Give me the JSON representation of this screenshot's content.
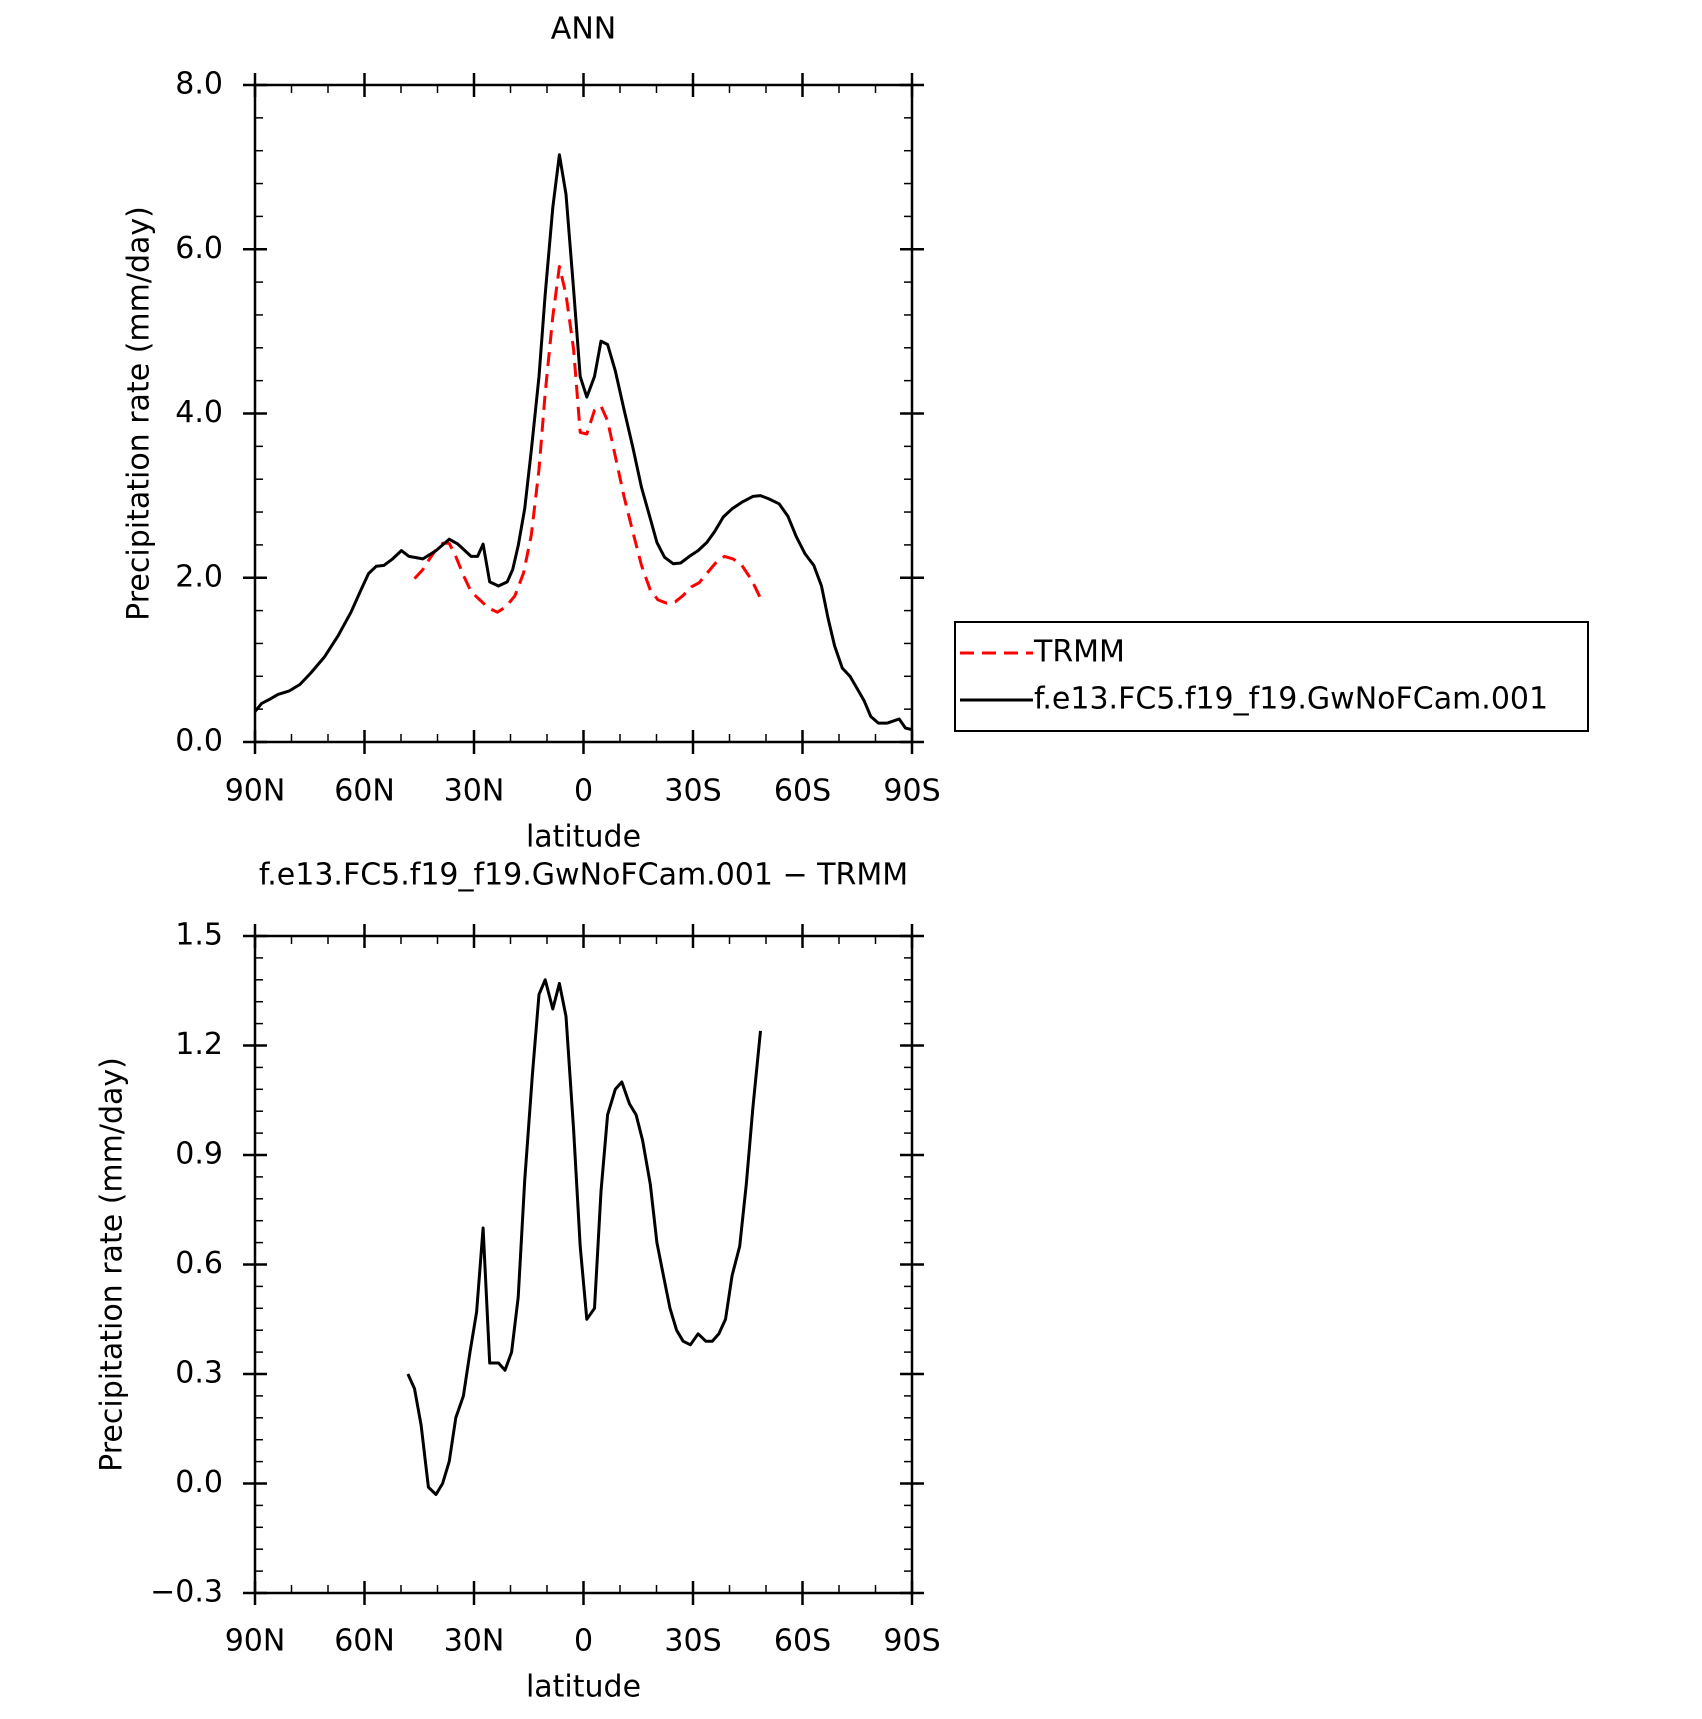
{
  "chart_data": [
    {
      "type": "line",
      "title": "ANN",
      "xlabel": "latitude",
      "ylabel": "Precipitation rate (mm/day)",
      "xlim": [
        90,
        -90
      ],
      "xticks": [
        {
          "value": 90,
          "label": "90N"
        },
        {
          "value": 60,
          "label": "60N"
        },
        {
          "value": 30,
          "label": "30N"
        },
        0,
        {
          "value": -30,
          "label": "30S"
        },
        {
          "value": -60,
          "label": "60S"
        },
        {
          "value": -90,
          "label": "90S"
        }
      ],
      "ylim": [
        0,
        8
      ],
      "yticks": [
        {
          "value": 0,
          "label": "0.0"
        },
        {
          "value": 2,
          "label": "2.0"
        },
        {
          "value": 4,
          "label": "4.0"
        },
        {
          "value": 6,
          "label": "6.0"
        },
        {
          "value": 8,
          "label": "8.0"
        }
      ],
      "legend": "right",
      "series": [
        {
          "name": "TRMM",
          "color": "#ff0000",
          "linestyle": "dashed",
          "x": [
            46.3,
            44,
            42.2,
            40.4,
            38.6,
            36.8,
            35.0,
            32.9,
            30.8,
            28.4,
            26.0,
            23.6,
            21.2,
            18.8,
            16.4,
            14.3,
            12.2,
            10.5,
            8.4,
            6.6,
            4.8,
            2.7,
            0.9,
            -0.9,
            -3.0,
            -4.8,
            -6.6,
            -8.7,
            -11.1,
            -13.5,
            -15.9,
            -18.3,
            -20.4,
            -22.8,
            -25.2,
            -27.2,
            -29.6,
            -31.7,
            -34.1,
            -36.2,
            -38.6,
            -41.0,
            -43.4,
            -46.1,
            -48.5
          ],
          "values": [
            1.99,
            2.1,
            2.23,
            2.34,
            2.42,
            2.42,
            2.26,
            2.03,
            1.83,
            1.73,
            1.63,
            1.58,
            1.65,
            1.78,
            2.06,
            2.52,
            3.32,
            4.25,
            5.18,
            5.79,
            5.45,
            4.78,
            3.77,
            3.75,
            4.04,
            4.09,
            3.91,
            3.48,
            2.99,
            2.56,
            2.15,
            1.85,
            1.73,
            1.69,
            1.71,
            1.78,
            1.89,
            1.94,
            2.07,
            2.18,
            2.26,
            2.23,
            2.15,
            1.97,
            1.75
          ]
        },
        {
          "name": "f.e13.FC5.f19_f19.GwNoFCam.001",
          "color": "#000000",
          "linestyle": "solid",
          "x": [
            90,
            88.2,
            86,
            83.7,
            80.7,
            77.7,
            74.7,
            70.9,
            67.3,
            63.7,
            61.3,
            58.9,
            56.8,
            54.7,
            52.3,
            49.9,
            47.8,
            44,
            40.4,
            36.8,
            34.4,
            30.8,
            29,
            27.5,
            25.7,
            23.3,
            20.9,
            19.4,
            17.9,
            16.1,
            14.3,
            12.2,
            10.5,
            8.4,
            6.6,
            4.8,
            2.7,
            0.9,
            -0.9,
            -3.0,
            -4.8,
            -6.6,
            -8.7,
            -11.1,
            -13.5,
            -15.9,
            -18.3,
            -20.1,
            -22.2,
            -24.6,
            -26.6,
            -29.0,
            -31.4,
            -33.8,
            -35.9,
            -38.3,
            -40.7,
            -43.4,
            -46.4,
            -48.5,
            -50.8,
            -53.6,
            -56.0,
            -58.3,
            -60.7,
            -63.1,
            -65.2,
            -67.0,
            -68.8,
            -70.9,
            -73.0,
            -75.1,
            -76.9,
            -78.7,
            -80.8,
            -83.2,
            -86.5,
            -88.2,
            -90
          ],
          "values": [
            0.37,
            0.47,
            0.52,
            0.58,
            0.62,
            0.7,
            0.84,
            1.04,
            1.29,
            1.58,
            1.82,
            2.05,
            2.14,
            2.15,
            2.23,
            2.33,
            2.26,
            2.23,
            2.33,
            2.47,
            2.41,
            2.26,
            2.26,
            2.41,
            1.95,
            1.9,
            1.95,
            2.1,
            2.39,
            2.84,
            3.55,
            4.45,
            5.45,
            6.51,
            7.15,
            6.67,
            5.51,
            4.45,
            4.2,
            4.45,
            4.88,
            4.84,
            4.52,
            4.05,
            3.59,
            3.1,
            2.72,
            2.43,
            2.25,
            2.17,
            2.18,
            2.26,
            2.33,
            2.43,
            2.56,
            2.74,
            2.84,
            2.92,
            2.99,
            3.0,
            2.96,
            2.9,
            2.75,
            2.5,
            2.29,
            2.15,
            1.9,
            1.51,
            1.17,
            0.9,
            0.8,
            0.64,
            0.5,
            0.31,
            0.23,
            0.23,
            0.28,
            0.17,
            0.15
          ]
        }
      ]
    },
    {
      "type": "line",
      "title": "f.e13.FC5.f19_f19.GwNoFCam.001 − TRMM",
      "xlabel": "latitude",
      "ylabel": "Precipitation rate (mm/day)",
      "xlim": [
        90,
        -90
      ],
      "xticks": [
        {
          "value": 90,
          "label": "90N"
        },
        {
          "value": 60,
          "label": "60N"
        },
        {
          "value": 30,
          "label": "30N"
        },
        0,
        {
          "value": -30,
          "label": "30S"
        },
        {
          "value": -60,
          "label": "60S"
        },
        {
          "value": -90,
          "label": "90S"
        }
      ],
      "ylim": [
        -0.3,
        1.5
      ],
      "yticks": [
        {
          "value": -0.3,
          "label": "−0.3"
        },
        {
          "value": 0,
          "label": "0.0"
        },
        0.3,
        0.6,
        0.9,
        1.2,
        1.5
      ],
      "color": "#000000",
      "x": [
        48.1,
        46.3,
        44.5,
        42.5,
        40.4,
        38.6,
        36.8,
        35.0,
        32.9,
        31.1,
        29.3,
        27.5,
        25.7,
        23.3,
        21.5,
        19.7,
        17.9,
        16.1,
        14.0,
        12.2,
        10.5,
        8.4,
        6.6,
        4.8,
        2.7,
        0.9,
        -0.9,
        -3.0,
        -4.8,
        -6.6,
        -8.7,
        -10.5,
        -12.6,
        -14.4,
        -16.2,
        -18.3,
        -20.1,
        -21.9,
        -23.7,
        -25.5,
        -27.3,
        -29.3,
        -31.4,
        -33.5,
        -35.3,
        -37.1,
        -38.9,
        -40.7,
        -42.8,
        -44.6,
        -46.4,
        -48.5
      ],
      "values": [
        0.3,
        0.26,
        0.16,
        -0.01,
        -0.03,
        0.0,
        0.06,
        0.18,
        0.24,
        0.36,
        0.47,
        0.7,
        0.33,
        0.33,
        0.31,
        0.36,
        0.51,
        0.83,
        1.12,
        1.34,
        1.38,
        1.3,
        1.37,
        1.28,
        0.97,
        0.65,
        0.45,
        0.48,
        0.8,
        1.01,
        1.08,
        1.1,
        1.04,
        1.01,
        0.94,
        0.82,
        0.66,
        0.57,
        0.48,
        0.42,
        0.39,
        0.38,
        0.41,
        0.39,
        0.39,
        0.41,
        0.45,
        0.57,
        0.65,
        0.82,
        1.03,
        1.24
      ]
    }
  ]
}
